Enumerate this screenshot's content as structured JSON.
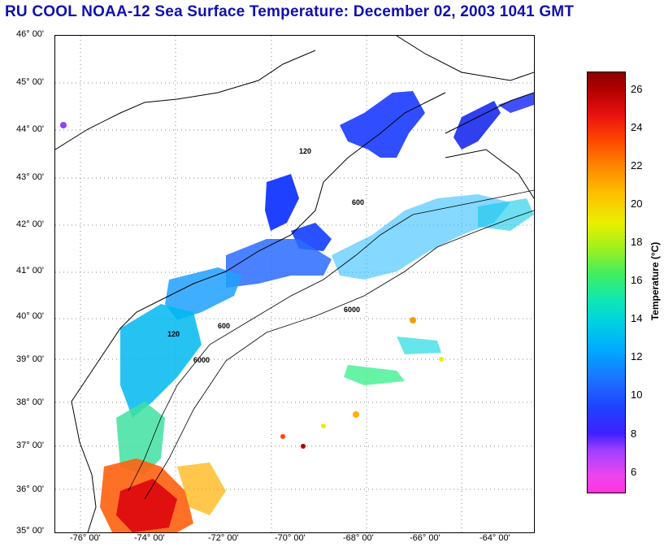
{
  "header": {
    "title": "RU COOL  NOAA-12  Sea Surface Temperature:  December 02, 2003 1041 GMT"
  },
  "map": {
    "lat_labels": [
      "46° 00'",
      "45° 00'",
      "44° 00'",
      "43° 00'",
      "42° 00'",
      "41° 00'",
      "40° 00'",
      "39° 00'",
      "38° 00'",
      "37° 00'",
      "36° 00'",
      "35° 00'"
    ],
    "lon_labels": [
      "-76° 00'",
      "-74° 00'",
      "-72° 00'",
      "-70° 00'",
      "-68° 00'",
      "-66° 00'",
      "-64° 00'"
    ],
    "contour_labels": [
      "120",
      "600",
      "6000"
    ]
  },
  "colorbar": {
    "title": "Temperature (°C)",
    "ticks": [
      "26",
      "24",
      "22",
      "20",
      "18",
      "16",
      "14",
      "12",
      "10",
      "8",
      "6"
    ],
    "range": [
      5,
      27
    ]
  },
  "colors": {
    "title": "#1010b0",
    "land": "#ffffff",
    "coast": "#000000",
    "shelf_cold": "#2040ff",
    "warm_south": "#e81010"
  }
}
